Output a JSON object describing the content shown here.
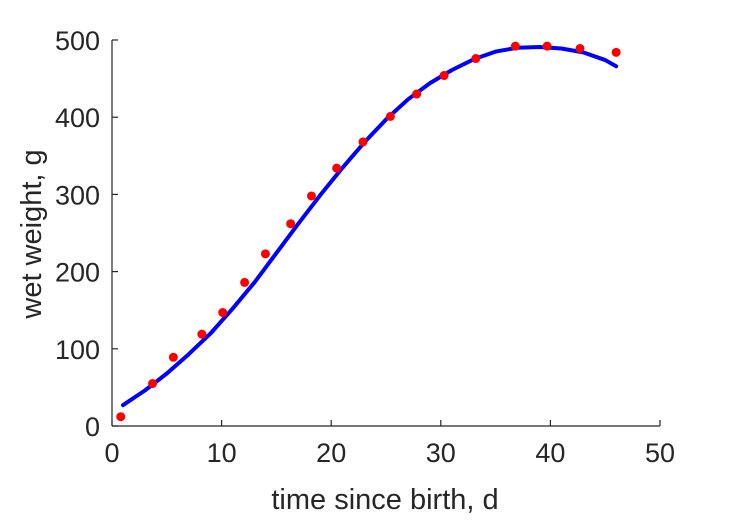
{
  "chart_data": {
    "type": "scatter",
    "xlabel": "time since birth, d",
    "ylabel": "wet weight, g",
    "xlim": [
      0,
      50
    ],
    "ylim": [
      0,
      500
    ],
    "xticks": [
      0,
      10,
      20,
      30,
      40,
      50
    ],
    "yticks": [
      0,
      100,
      200,
      300,
      400,
      500
    ],
    "grid": false,
    "series": [
      {
        "kind": "points",
        "color": "#ff0000",
        "x": [
          0.8,
          3.7,
          5.6,
          8.2,
          10.1,
          12.1,
          14.0,
          16.3,
          18.2,
          20.5,
          22.9,
          25.4,
          27.8,
          30.3,
          33.2,
          36.8,
          39.7,
          42.7,
          46.0
        ],
        "y": [
          12,
          55,
          89,
          119,
          147,
          186,
          223,
          262,
          298,
          334,
          368,
          401,
          430,
          454,
          476,
          492,
          492,
          489,
          484
        ]
      },
      {
        "kind": "line",
        "color": "#0000ff",
        "x": [
          1,
          3,
          5,
          7,
          9,
          11,
          13,
          15,
          17,
          19,
          21,
          23,
          25,
          27,
          29,
          31,
          33,
          35,
          37,
          39,
          41,
          43,
          45,
          46
        ],
        "y": [
          27,
          46,
          68,
          93,
          120,
          152,
          186,
          224,
          262,
          299,
          334,
          367,
          397,
          423,
          444,
          461,
          475,
          485,
          490,
          491,
          489,
          484,
          474,
          466
        ]
      }
    ]
  }
}
